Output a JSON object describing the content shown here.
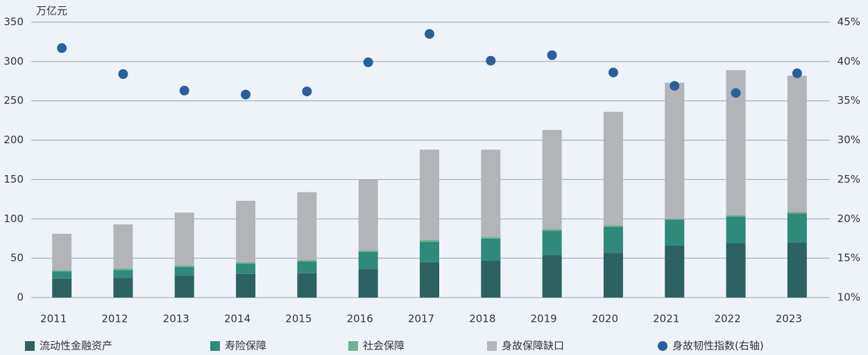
{
  "chart_data": {
    "type": "bar",
    "stacked": true,
    "y_label": "万亿元",
    "categories": [
      "2011",
      "2012",
      "2013",
      "2014",
      "2015",
      "2016",
      "2017",
      "2018",
      "2019",
      "2020",
      "2021",
      "2022",
      "2023"
    ],
    "series": [
      {
        "name": "流动性金融资产",
        "color": "#2d6262",
        "values": [
          24,
          25,
          28,
          30,
          31,
          36,
          45,
          47,
          54,
          57,
          66,
          69,
          70
        ]
      },
      {
        "name": "寿险保障",
        "color": "#2f8a7a",
        "values": [
          9,
          10,
          11,
          13,
          15,
          22,
          26,
          28,
          31,
          33,
          33,
          34,
          37
        ]
      },
      {
        "name": "社会保障",
        "color": "#6db38f",
        "values": [
          2,
          2,
          2,
          2,
          2,
          2,
          2,
          2,
          2,
          2,
          1,
          2,
          2
        ]
      },
      {
        "name": "身故保障缺口",
        "color": "#b3b4b8",
        "values": [
          46,
          56,
          67,
          78,
          86,
          90,
          115,
          111,
          126,
          144,
          173,
          184,
          173
        ]
      },
      {
        "name": "身故韧性指数(右轴)",
        "color": "#2a5f9a",
        "type": "scatter",
        "axis": "y2",
        "values": [
          41.7,
          38.4,
          36.3,
          35.8,
          36.2,
          39.9,
          43.5,
          40.1,
          40.8,
          38.6,
          36.9,
          36.0,
          38.5
        ]
      }
    ],
    "ylim": [
      0,
      350
    ],
    "yticks": [
      0,
      50,
      100,
      150,
      200,
      250,
      300,
      350
    ],
    "y2lim": [
      10,
      45
    ],
    "y2ticks": [
      {
        "value": 10,
        "label": "10%"
      },
      {
        "value": 15,
        "label": "15%"
      },
      {
        "value": 20,
        "label": "20%"
      },
      {
        "value": 25,
        "label": "25%"
      },
      {
        "value": 30,
        "label": "30%"
      },
      {
        "value": 35,
        "label": "35%"
      },
      {
        "value": 40,
        "label": "40%"
      },
      {
        "value": 45,
        "label": "45%"
      }
    ],
    "grid": true,
    "legend": "bottom"
  }
}
